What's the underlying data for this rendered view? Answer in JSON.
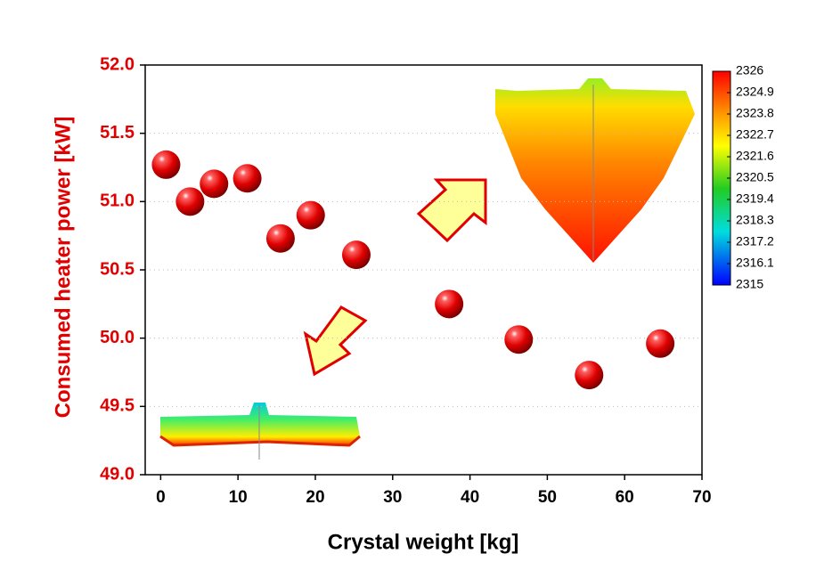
{
  "chart_data": {
    "type": "line",
    "x_label": "Crystal weight [kg]",
    "y_label": "Consumed heater power [kW]",
    "x": [
      0.7,
      3.8,
      6.9,
      11.2,
      15.5,
      19.4,
      25.3,
      37.3,
      46.3,
      55.4,
      64.6
    ],
    "values": [
      51.27,
      51.0,
      51.13,
      51.17,
      50.73,
      50.9,
      50.61,
      50.25,
      49.99,
      49.73,
      49.96
    ],
    "color": "#e00000",
    "xlim": [
      -2,
      70
    ],
    "xticks": [
      0,
      10,
      20,
      30,
      40,
      50,
      60,
      70
    ],
    "ylim": [
      49,
      52
    ],
    "yticks": [
      {
        "value": 49,
        "label": "49.0"
      },
      49.5,
      {
        "value": 50,
        "label": "50.0"
      },
      50.5,
      {
        "value": 51,
        "label": "51.0"
      },
      51.5,
      {
        "value": 52,
        "label": "52.0"
      }
    ],
    "grid": true,
    "colorbar": {
      "lim": [
        2315,
        2326
      ],
      "ticks": [
        2326,
        2324.9,
        2323.8,
        2322.7,
        2321.6,
        2320.5,
        2319.4,
        2318.3,
        2317.2,
        2316.1,
        2315
      ]
    }
  }
}
